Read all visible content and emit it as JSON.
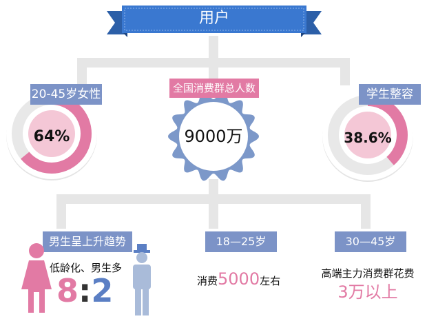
{
  "header": {
    "title": "用户"
  },
  "center": {
    "label": "全国消费群总人数",
    "value": "9000万"
  },
  "left_ring": {
    "label": "20-45岁女性",
    "value": "64%",
    "fraction": 0.64
  },
  "right_ring": {
    "label": "学生整容",
    "value": "38.6%",
    "fraction": 0.386
  },
  "bottom_left": {
    "label": "男生呈上升趋势",
    "desc": "低龄化、男生多",
    "ratio_a": "8",
    "ratio_sep": ":",
    "ratio_b": "2"
  },
  "bottom_mid": {
    "label": "18—25岁",
    "prefix": "消费",
    "value": "5000",
    "suffix": "左右"
  },
  "bottom_right": {
    "label": "30—45岁",
    "desc": "高端主力消费群花费",
    "value": "3万以上"
  },
  "colors": {
    "pink": "#e27aa4",
    "blue": "#7c93c7",
    "banner_blue": "#3a78d0",
    "connector_gray": "#e6e6e6",
    "ring_track": "#e8e8e8"
  },
  "icons": [
    "female-figure-icon",
    "male-figure-icon"
  ]
}
